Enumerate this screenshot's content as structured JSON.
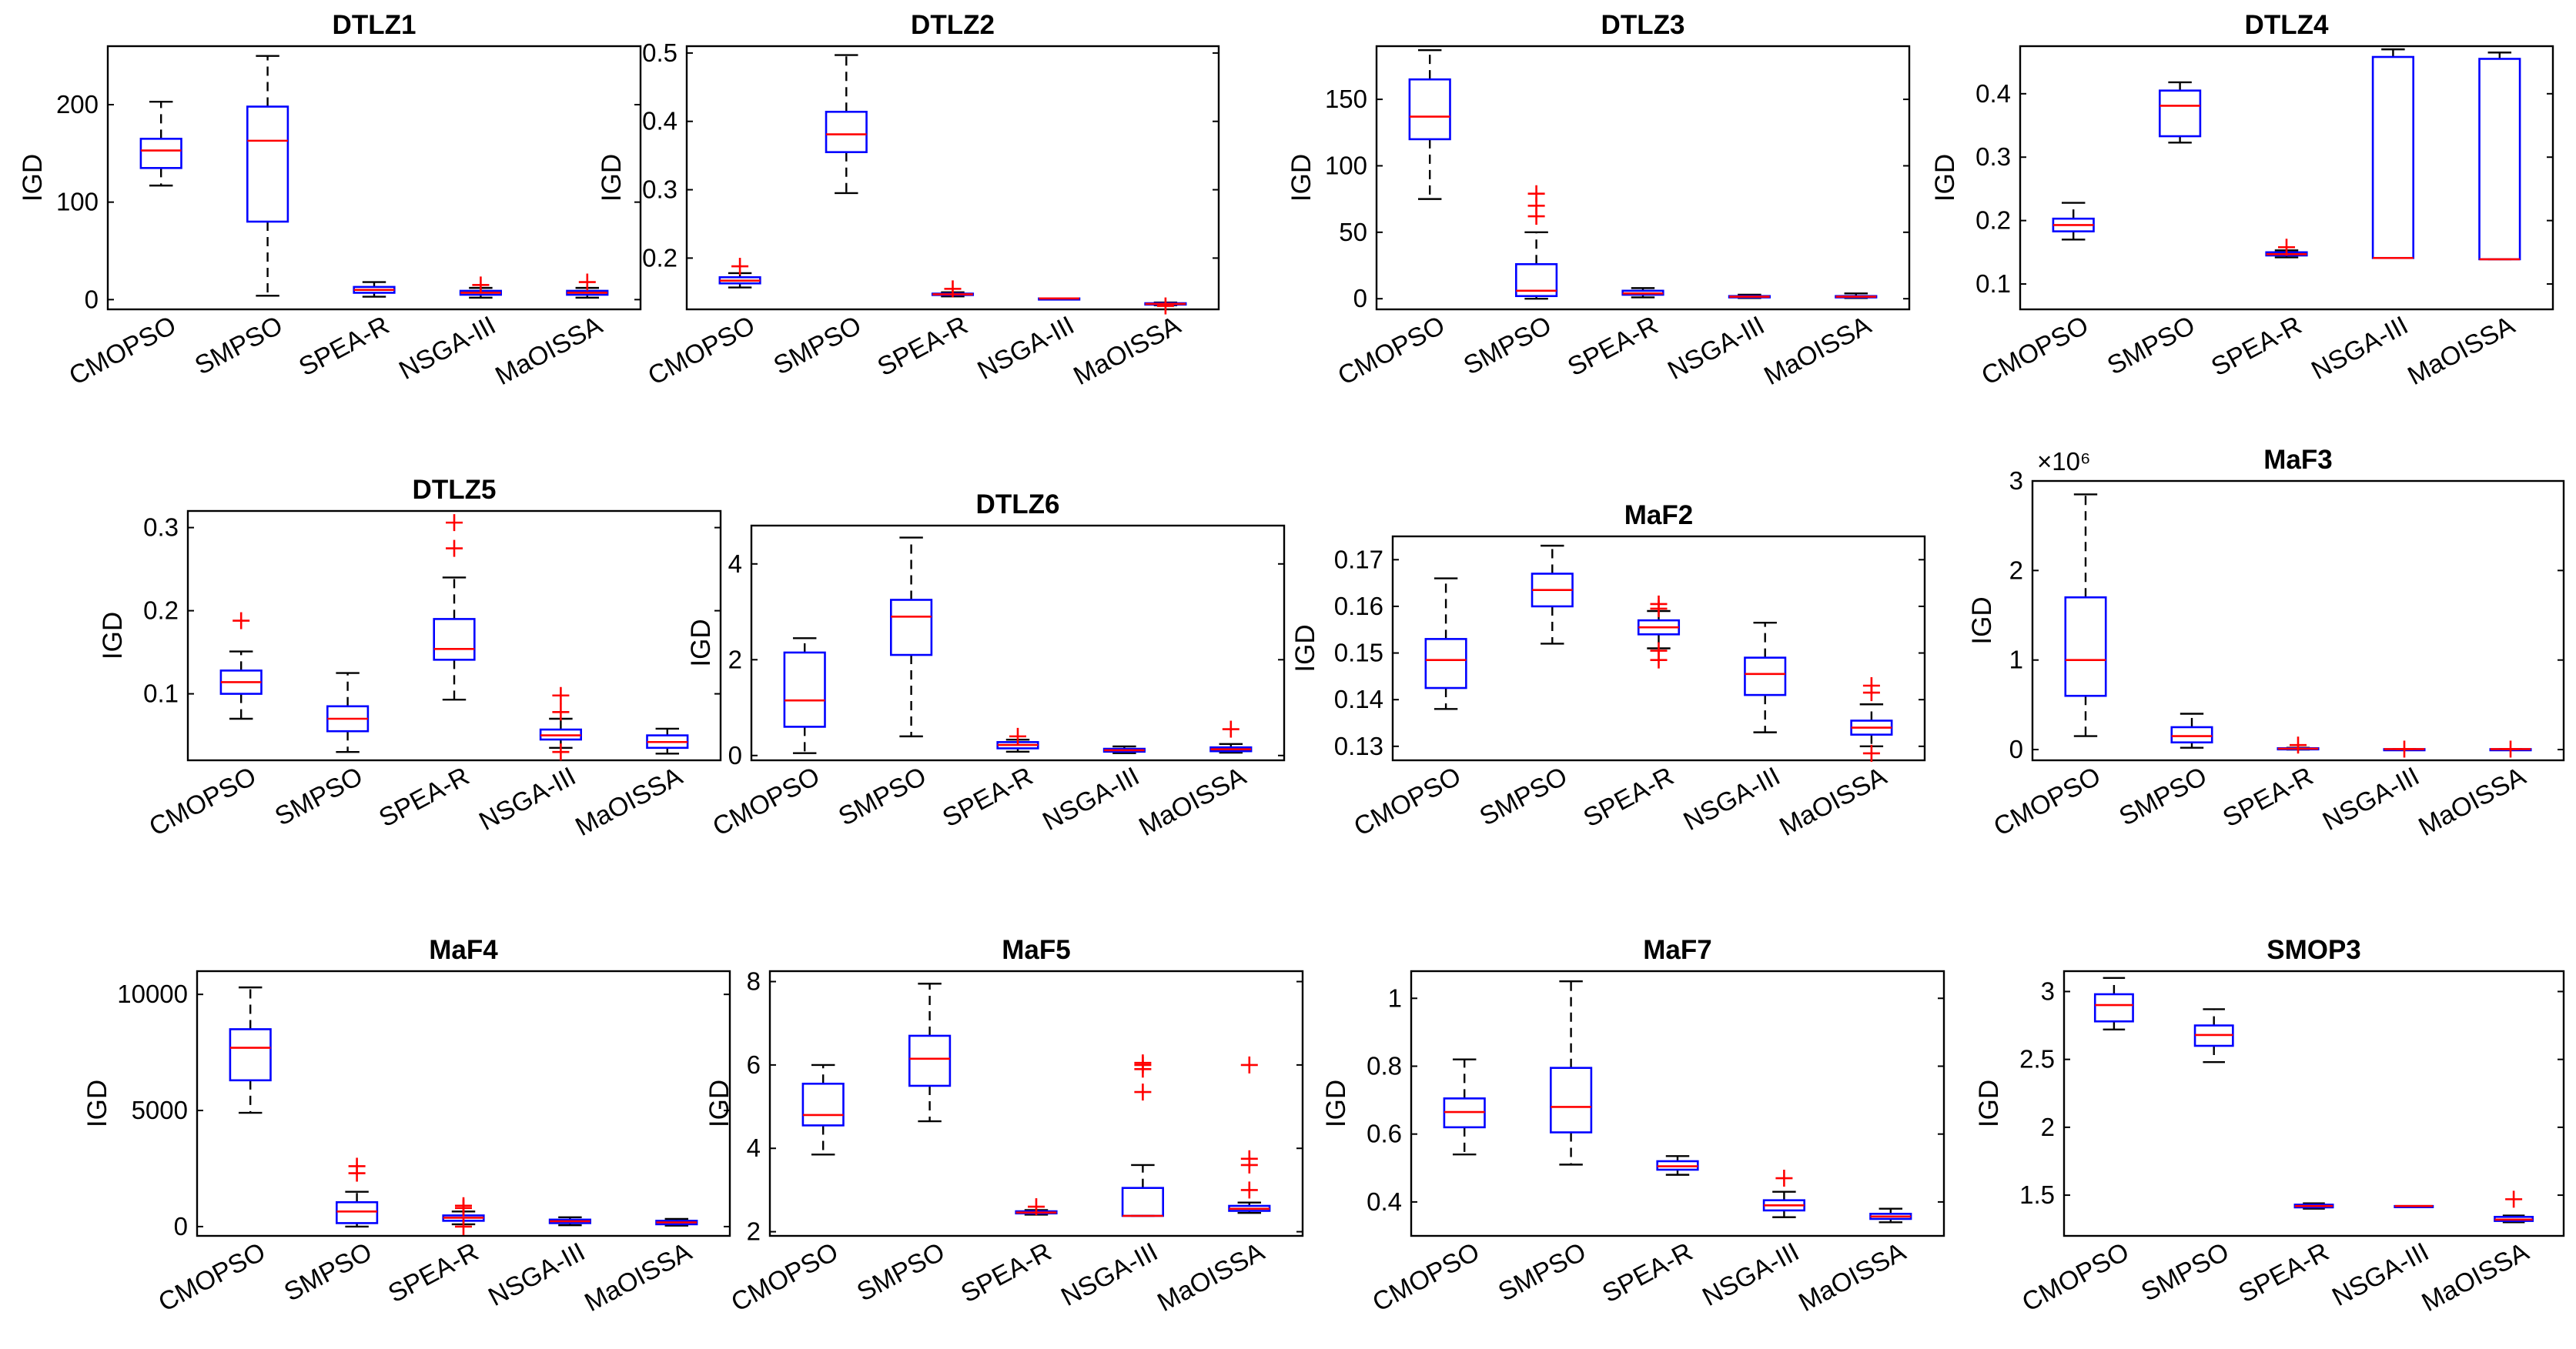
{
  "figure": {
    "colors": {
      "box": "#0000ff",
      "median": "#ff0000",
      "whisker": "#000000",
      "outlier": "#ff0000",
      "axis": "#000000"
    },
    "algorithms": [
      "CMOPSO",
      "SMPSO",
      "SPEA-R",
      "NSGA-III",
      "MaOISSA"
    ]
  },
  "chart_data": [
    {
      "type": "box",
      "title": "DTLZ1",
      "ylabel": "IGD",
      "ylim": [
        -10,
        260
      ],
      "yticks": [
        0,
        100,
        200
      ],
      "ytick_labels": [
        "0",
        "100",
        "200"
      ],
      "categories": [
        "CMOPSO",
        "SMPSO",
        "SPEA-R",
        "NSGA-III",
        "MaOISSA"
      ],
      "boxes": [
        {
          "q1": 135,
          "median": 153,
          "q3": 165,
          "whislo": 117,
          "whishi": 203,
          "outliers": []
        },
        {
          "q1": 80,
          "median": 163,
          "q3": 198,
          "whislo": 4,
          "whishi": 250,
          "outliers": []
        },
        {
          "q1": 7,
          "median": 10,
          "q3": 13,
          "whislo": 3,
          "whishi": 18,
          "outliers": []
        },
        {
          "q1": 5,
          "median": 7,
          "q3": 9,
          "whislo": 2,
          "whishi": 12,
          "outliers": [
            15
          ]
        },
        {
          "q1": 5,
          "median": 7,
          "q3": 9,
          "whislo": 2,
          "whishi": 12,
          "outliers": [
            18
          ]
        }
      ]
    },
    {
      "type": "box",
      "title": "DTLZ2",
      "ylabel": "IGD",
      "ylim": [
        0.125,
        0.51
      ],
      "yticks": [
        0.2,
        0.3,
        0.4,
        0.5
      ],
      "ytick_labels": [
        "0.2",
        "0.3",
        "0.4",
        "0.5"
      ],
      "categories": [
        "CMOPSO",
        "SMPSO",
        "SPEA-R",
        "NSGA-III",
        "MaOISSA"
      ],
      "boxes": [
        {
          "q1": 0.163,
          "median": 0.167,
          "q3": 0.172,
          "whislo": 0.157,
          "whishi": 0.178,
          "outliers": [
            0.188
          ]
        },
        {
          "q1": 0.355,
          "median": 0.381,
          "q3": 0.414,
          "whislo": 0.295,
          "whishi": 0.497,
          "outliers": []
        },
        {
          "q1": 0.146,
          "median": 0.147,
          "q3": 0.148,
          "whislo": 0.144,
          "whishi": 0.15,
          "outliers": [
            0.155
          ]
        },
        {
          "q1": 0.141,
          "median": 0.141,
          "q3": 0.141,
          "whislo": 0.141,
          "whishi": 0.141,
          "outliers": []
        },
        {
          "q1": 0.132,
          "median": 0.133,
          "q3": 0.134,
          "whislo": 0.131,
          "whishi": 0.135,
          "outliers": [
            0.13
          ]
        }
      ]
    },
    {
      "type": "box",
      "title": "DTLZ3",
      "ylabel": "IGD",
      "ylim": [
        -8,
        190
      ],
      "yticks": [
        0,
        50,
        100,
        150
      ],
      "ytick_labels": [
        "0",
        "50",
        "100",
        "150"
      ],
      "categories": [
        "CMOPSO",
        "SMPSO",
        "SPEA-R",
        "NSGA-III",
        "MaOISSA"
      ],
      "boxes": [
        {
          "q1": 120,
          "median": 137,
          "q3": 165,
          "whislo": 75,
          "whishi": 187,
          "outliers": []
        },
        {
          "q1": 2,
          "median": 6,
          "q3": 26,
          "whislo": 0,
          "whishi": 50,
          "outliers": [
            62,
            70,
            79
          ]
        },
        {
          "q1": 3,
          "median": 4,
          "q3": 6,
          "whislo": 1,
          "whishi": 8,
          "outliers": []
        },
        {
          "q1": 1,
          "median": 1.5,
          "q3": 2,
          "whislo": 0.5,
          "whishi": 3,
          "outliers": []
        },
        {
          "q1": 1,
          "median": 1.5,
          "q3": 2,
          "whislo": 0.5,
          "whishi": 4,
          "outliers": []
        }
      ]
    },
    {
      "type": "box",
      "title": "DTLZ4",
      "ylabel": "IGD",
      "ylim": [
        0.06,
        0.475
      ],
      "yticks": [
        0.1,
        0.2,
        0.3,
        0.4
      ],
      "ytick_labels": [
        "0.1",
        "0.2",
        "0.3",
        "0.4"
      ],
      "categories": [
        "CMOPSO",
        "SMPSO",
        "SPEA-R",
        "NSGA-III",
        "MaOISSA"
      ],
      "boxes": [
        {
          "q1": 0.183,
          "median": 0.193,
          "q3": 0.203,
          "whislo": 0.17,
          "whishi": 0.228,
          "outliers": []
        },
        {
          "q1": 0.333,
          "median": 0.381,
          "q3": 0.405,
          "whislo": 0.323,
          "whishi": 0.418,
          "outliers": []
        },
        {
          "q1": 0.145,
          "median": 0.147,
          "q3": 0.15,
          "whislo": 0.142,
          "whishi": 0.153,
          "outliers": [
            0.158
          ]
        },
        {
          "q1": 0.141,
          "median": 0.141,
          "q3": 0.458,
          "whislo": 0.141,
          "whishi": 0.47,
          "outliers": []
        },
        {
          "q1": 0.139,
          "median": 0.139,
          "q3": 0.455,
          "whislo": 0.139,
          "whishi": 0.465,
          "outliers": []
        }
      ]
    },
    {
      "type": "box",
      "title": "DTLZ5",
      "ylabel": "IGD",
      "ylim": [
        0.02,
        0.32
      ],
      "yticks": [
        0.1,
        0.2,
        0.3
      ],
      "ytick_labels": [
        "0.1",
        "0.2",
        "0.3"
      ],
      "categories": [
        "CMOPSO",
        "SMPSO",
        "SPEA-R",
        "NSGA-III",
        "MaOISSA"
      ],
      "boxes": [
        {
          "q1": 0.1,
          "median": 0.114,
          "q3": 0.128,
          "whislo": 0.07,
          "whishi": 0.151,
          "outliers": [
            0.188
          ]
        },
        {
          "q1": 0.055,
          "median": 0.07,
          "q3": 0.085,
          "whislo": 0.03,
          "whishi": 0.125,
          "outliers": []
        },
        {
          "q1": 0.141,
          "median": 0.154,
          "q3": 0.19,
          "whislo": 0.093,
          "whishi": 0.24,
          "outliers": [
            0.275,
            0.306
          ]
        },
        {
          "q1": 0.045,
          "median": 0.05,
          "q3": 0.057,
          "whislo": 0.035,
          "whishi": 0.07,
          "outliers": [
            0.03,
            0.078,
            0.098
          ]
        },
        {
          "q1": 0.035,
          "median": 0.042,
          "q3": 0.05,
          "whislo": 0.028,
          "whishi": 0.058,
          "outliers": []
        }
      ]
    },
    {
      "type": "box",
      "title": "DTLZ6",
      "ylabel": "IGD",
      "ylim": [
        -0.1,
        4.8
      ],
      "yticks": [
        0,
        2,
        4
      ],
      "ytick_labels": [
        "0",
        "2",
        "4"
      ],
      "categories": [
        "CMOPSO",
        "SMPSO",
        "SPEA-R",
        "NSGA-III",
        "MaOISSA"
      ],
      "boxes": [
        {
          "q1": 0.6,
          "median": 1.15,
          "q3": 2.15,
          "whislo": 0.05,
          "whishi": 2.45,
          "outliers": []
        },
        {
          "q1": 2.1,
          "median": 2.9,
          "q3": 3.25,
          "whislo": 0.4,
          "whishi": 4.55,
          "outliers": []
        },
        {
          "q1": 0.15,
          "median": 0.22,
          "q3": 0.28,
          "whislo": 0.08,
          "whishi": 0.33,
          "outliers": [
            0.4
          ]
        },
        {
          "q1": 0.08,
          "median": 0.11,
          "q3": 0.14,
          "whislo": 0.05,
          "whishi": 0.19,
          "outliers": []
        },
        {
          "q1": 0.09,
          "median": 0.13,
          "q3": 0.17,
          "whislo": 0.06,
          "whishi": 0.24,
          "outliers": [
            0.55
          ]
        }
      ]
    },
    {
      "type": "box",
      "title": "MaF2",
      "ylabel": "IGD",
      "ylim": [
        0.127,
        0.175
      ],
      "yticks": [
        0.13,
        0.14,
        0.15,
        0.16,
        0.17
      ],
      "ytick_labels": [
        "0.13",
        "0.14",
        "0.15",
        "0.16",
        "0.17"
      ],
      "categories": [
        "CMOPSO",
        "SMPSO",
        "SPEA-R",
        "NSGA-III",
        "MaOISSA"
      ],
      "boxes": [
        {
          "q1": 0.1425,
          "median": 0.1485,
          "q3": 0.153,
          "whislo": 0.138,
          "whishi": 0.166,
          "outliers": []
        },
        {
          "q1": 0.16,
          "median": 0.1635,
          "q3": 0.167,
          "whislo": 0.152,
          "whishi": 0.173,
          "outliers": []
        },
        {
          "q1": 0.154,
          "median": 0.1555,
          "q3": 0.157,
          "whislo": 0.151,
          "whishi": 0.159,
          "outliers": [
            0.1485,
            0.1505,
            0.1595,
            0.1605
          ]
        },
        {
          "q1": 0.141,
          "median": 0.1455,
          "q3": 0.149,
          "whislo": 0.133,
          "whishi": 0.1565,
          "outliers": []
        },
        {
          "q1": 0.1325,
          "median": 0.134,
          "q3": 0.1355,
          "whislo": 0.13,
          "whishi": 0.139,
          "outliers": [
            0.1285,
            0.1415,
            0.143
          ]
        }
      ]
    },
    {
      "type": "box",
      "title": "MaF3",
      "ylabel": "IGD",
      "ylim": [
        -0.12,
        3.0
      ],
      "yticks": [
        0,
        1,
        2,
        3
      ],
      "ytick_labels": [
        "0",
        "1",
        "2",
        "3"
      ],
      "exponent_label": "×10⁶",
      "categories": [
        "CMOPSO",
        "SMPSO",
        "SPEA-R",
        "NSGA-III",
        "MaOISSA"
      ],
      "boxes": [
        {
          "q1": 0.6,
          "median": 1.0,
          "q3": 1.7,
          "whislo": 0.15,
          "whishi": 2.85,
          "outliers": []
        },
        {
          "q1": 0.08,
          "median": 0.15,
          "q3": 0.25,
          "whislo": 0.02,
          "whishi": 0.4,
          "outliers": []
        },
        {
          "q1": 0.005,
          "median": 0.01,
          "q3": 0.015,
          "whislo": 0.0,
          "whishi": 0.02,
          "outliers": [
            0.05
          ]
        },
        {
          "q1": 0.005,
          "median": 0.005,
          "q3": 0.005,
          "whislo": 0.005,
          "whishi": 0.005,
          "outliers": [
            0.005
          ]
        },
        {
          "q1": 0.005,
          "median": 0.005,
          "q3": 0.005,
          "whislo": 0.005,
          "whishi": 0.005,
          "outliers": [
            0.005
          ]
        }
      ]
    },
    {
      "type": "box",
      "title": "MaF4",
      "ylabel": "IGD",
      "ylim": [
        -400,
        11000
      ],
      "yticks": [
        0,
        5000,
        10000
      ],
      "ytick_labels": [
        "0",
        "5000",
        "10000"
      ],
      "categories": [
        "CMOPSO",
        "SMPSO",
        "SPEA-R",
        "NSGA-III",
        "MaOISSA"
      ],
      "boxes": [
        {
          "q1": 6300,
          "median": 7700,
          "q3": 8500,
          "whislo": 4900,
          "whishi": 10300,
          "outliers": []
        },
        {
          "q1": 150,
          "median": 650,
          "q3": 1050,
          "whislo": 0,
          "whishi": 1500,
          "outliers": [
            2300,
            2600
          ]
        },
        {
          "q1": 250,
          "median": 380,
          "q3": 480,
          "whislo": 100,
          "whishi": 650,
          "outliers": [
            0,
            800,
            900
          ]
        },
        {
          "q1": 150,
          "median": 230,
          "q3": 300,
          "whislo": 60,
          "whishi": 400,
          "outliers": []
        },
        {
          "q1": 100,
          "median": 180,
          "q3": 250,
          "whislo": 40,
          "whishi": 330,
          "outliers": []
        }
      ]
    },
    {
      "type": "box",
      "title": "MaF5",
      "ylabel": "IGD",
      "ylim": [
        1.9,
        8.25
      ],
      "yticks": [
        2,
        4,
        6,
        8
      ],
      "ytick_labels": [
        "2",
        "4",
        "6",
        "8"
      ],
      "categories": [
        "CMOPSO",
        "SMPSO",
        "SPEA-R",
        "NSGA-III",
        "MaOISSA"
      ],
      "boxes": [
        {
          "q1": 4.55,
          "median": 4.8,
          "q3": 5.55,
          "whislo": 3.85,
          "whishi": 6.0,
          "outliers": []
        },
        {
          "q1": 5.5,
          "median": 6.15,
          "q3": 6.7,
          "whislo": 4.65,
          "whishi": 7.95,
          "outliers": []
        },
        {
          "q1": 2.44,
          "median": 2.46,
          "q3": 2.49,
          "whislo": 2.41,
          "whishi": 2.52,
          "outliers": [
            2.6
          ]
        },
        {
          "q1": 2.38,
          "median": 2.38,
          "q3": 3.05,
          "whislo": 2.38,
          "whishi": 3.6,
          "outliers": [
            5.35,
            5.9,
            6.0,
            6.05
          ]
        },
        {
          "q1": 2.5,
          "median": 2.55,
          "q3": 2.62,
          "whislo": 2.45,
          "whishi": 2.7,
          "outliers": [
            3.0,
            3.6,
            3.75,
            6.0
          ]
        }
      ]
    },
    {
      "type": "box",
      "title": "MaF7",
      "ylabel": "IGD",
      "ylim": [
        0.3,
        1.08
      ],
      "yticks": [
        0.4,
        0.6,
        0.8,
        1
      ],
      "ytick_labels": [
        "0.4",
        "0.6",
        "0.8",
        "1"
      ],
      "categories": [
        "CMOPSO",
        "SMPSO",
        "SPEA-R",
        "NSGA-III",
        "MaOISSA"
      ],
      "boxes": [
        {
          "q1": 0.62,
          "median": 0.665,
          "q3": 0.705,
          "whislo": 0.54,
          "whishi": 0.82,
          "outliers": []
        },
        {
          "q1": 0.605,
          "median": 0.68,
          "q3": 0.795,
          "whislo": 0.51,
          "whishi": 1.05,
          "outliers": []
        },
        {
          "q1": 0.495,
          "median": 0.505,
          "q3": 0.52,
          "whislo": 0.48,
          "whishi": 0.535,
          "outliers": []
        },
        {
          "q1": 0.375,
          "median": 0.39,
          "q3": 0.405,
          "whislo": 0.355,
          "whishi": 0.43,
          "outliers": [
            0.47
          ]
        },
        {
          "q1": 0.35,
          "median": 0.357,
          "q3": 0.365,
          "whislo": 0.34,
          "whishi": 0.38,
          "outliers": []
        }
      ]
    },
    {
      "type": "box",
      "title": "SMOP3",
      "ylabel": "IGD",
      "ylim": [
        1.2,
        3.15
      ],
      "yticks": [
        1.5,
        2,
        2.5,
        3
      ],
      "ytick_labels": [
        "1.5",
        "2",
        "2.5",
        "3"
      ],
      "categories": [
        "CMOPSO",
        "SMPSO",
        "SPEA-R",
        "NSGA-III",
        "MaOISSA"
      ],
      "boxes": [
        {
          "q1": 2.78,
          "median": 2.9,
          "q3": 2.98,
          "whislo": 2.72,
          "whishi": 3.1,
          "outliers": []
        },
        {
          "q1": 2.6,
          "median": 2.68,
          "q3": 2.75,
          "whislo": 2.48,
          "whishi": 2.87,
          "outliers": []
        },
        {
          "q1": 1.41,
          "median": 1.42,
          "q3": 1.43,
          "whislo": 1.4,
          "whishi": 1.44,
          "outliers": []
        },
        {
          "q1": 1.42,
          "median": 1.42,
          "q3": 1.42,
          "whislo": 1.42,
          "whishi": 1.42,
          "outliers": []
        },
        {
          "q1": 1.31,
          "median": 1.32,
          "q3": 1.34,
          "whislo": 1.3,
          "whishi": 1.35,
          "outliers": [
            1.47
          ]
        }
      ]
    }
  ]
}
